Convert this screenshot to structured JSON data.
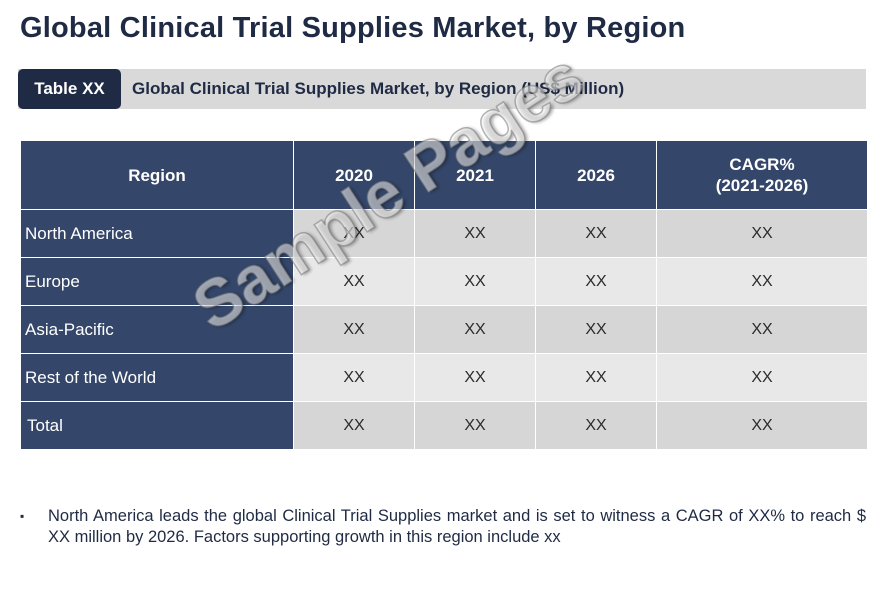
{
  "title": "Global Clinical Trial Supplies Market, by Region",
  "caption": {
    "tag": "Table XX",
    "text": "Global Clinical Trial Supplies Market, by Region (US$ Million)"
  },
  "table": {
    "headers": [
      "Region",
      "2020",
      "2021",
      "2026",
      "CAGR%",
      "(2021-2026)"
    ],
    "rows": [
      {
        "region": "North America",
        "values": [
          "XX",
          "XX",
          "XX",
          "XX"
        ]
      },
      {
        "region": "Europe",
        "values": [
          "XX",
          "XX",
          "XX",
          "XX"
        ]
      },
      {
        "region": "Asia-Pacific",
        "values": [
          "XX",
          "XX",
          "XX",
          "XX"
        ]
      },
      {
        "region": "Rest of the World",
        "values": [
          "XX",
          "XX",
          "XX",
          "XX"
        ]
      },
      {
        "region": "Total",
        "values": [
          "XX",
          "XX",
          "XX",
          "XX"
        ]
      }
    ]
  },
  "watermark": "Sample Pages",
  "note": {
    "bullet": "▪",
    "text": "North America leads the global Clinical Trial Supplies market and is set to witness a CAGR of XX% to reach $ XX million by 2026. Factors supporting growth in this region include xx"
  }
}
